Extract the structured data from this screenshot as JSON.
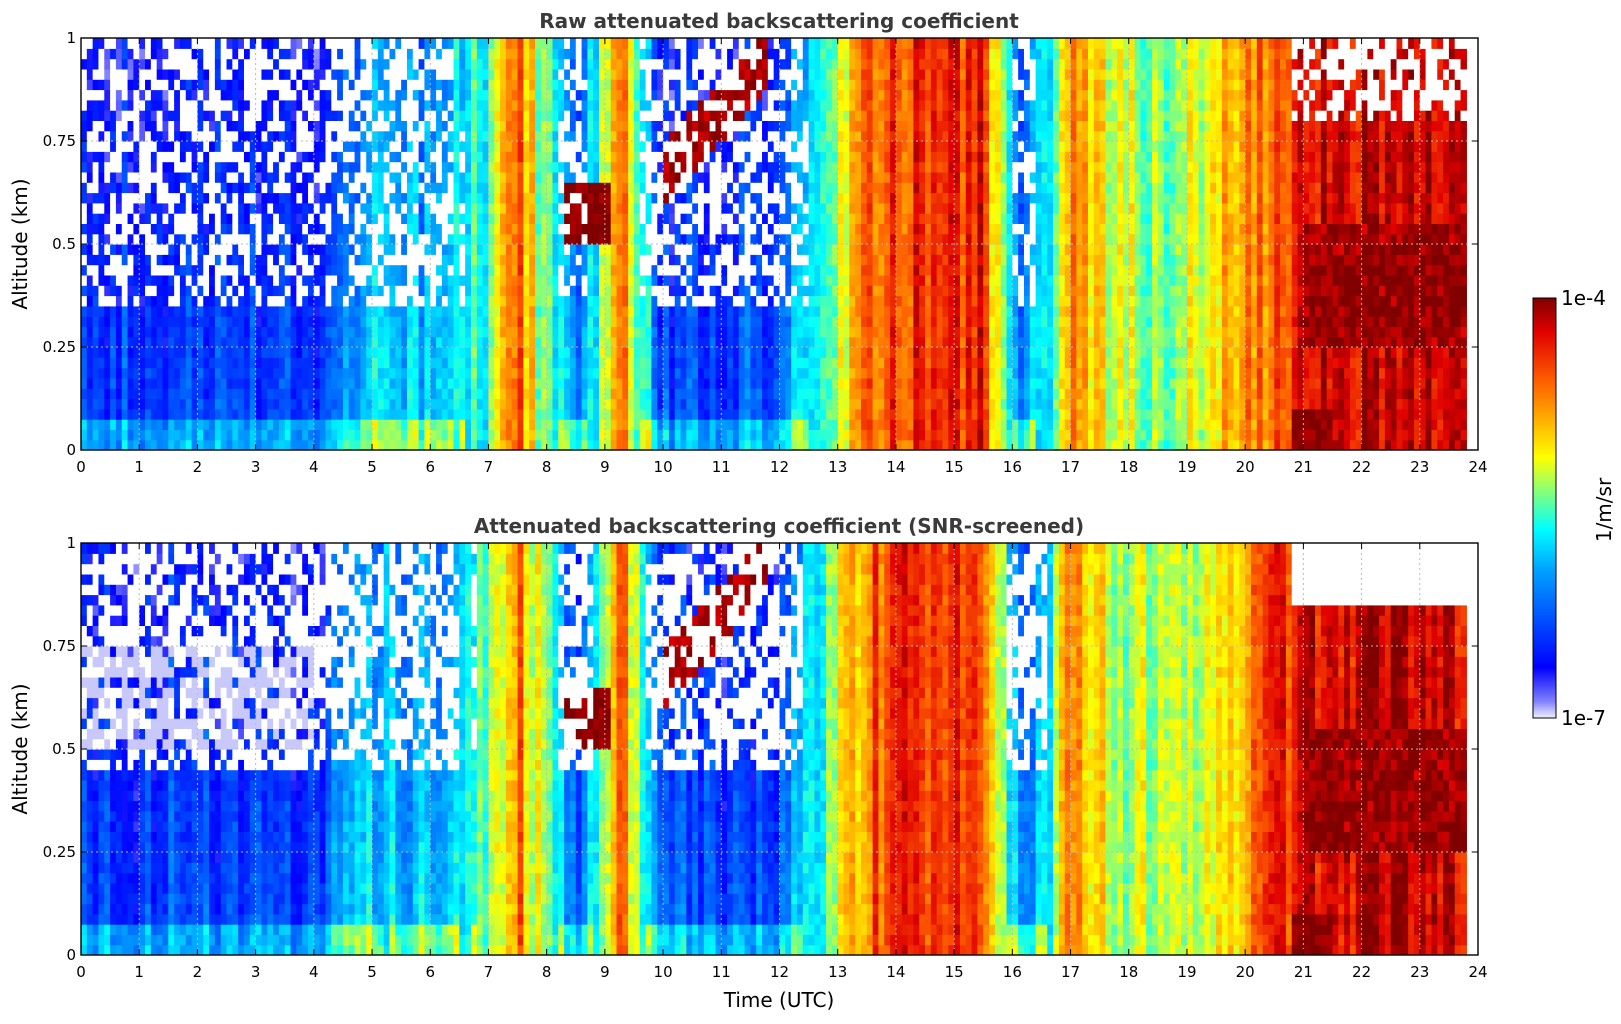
{
  "chart_data": [
    {
      "type": "heatmap",
      "title": "Raw attenuated backscattering coefficient",
      "xlabel": "",
      "ylabel": "Altitude (km)",
      "xlim": [
        0,
        24
      ],
      "ylim": [
        0,
        1
      ],
      "x_ticks": [
        "0",
        "1",
        "2",
        "3",
        "4",
        "5",
        "6",
        "7",
        "8",
        "9",
        "10",
        "11",
        "12",
        "13",
        "14",
        "15",
        "16",
        "17",
        "18",
        "19",
        "20",
        "21",
        "22",
        "23",
        "24"
      ],
      "y_ticks": [
        "0",
        "0.25",
        "0.5",
        "0.75",
        "1"
      ],
      "grid": true,
      "screened": false,
      "level_profile_by_hour_log10": [
        {
          "t": 0,
          "level": -6.6
        },
        {
          "t": 1,
          "level": -6.6
        },
        {
          "t": 2,
          "level": -6.6
        },
        {
          "t": 3,
          "level": -6.6
        },
        {
          "t": 4,
          "level": -6.6
        },
        {
          "t": 5,
          "level": -6.0
        },
        {
          "t": 6,
          "level": -6.1
        },
        {
          "t": 7,
          "level": -5.5
        },
        {
          "t": 7.5,
          "level": -4.6
        },
        {
          "t": 8.5,
          "level": -6.5
        },
        {
          "t": 9.3,
          "level": -4.6
        },
        {
          "t": 10,
          "level": -6.6
        },
        {
          "t": 12,
          "level": -6.5
        },
        {
          "t": 13.5,
          "level": -4.6
        },
        {
          "t": 14.5,
          "level": -4.4
        },
        {
          "t": 15.5,
          "level": -4.4
        },
        {
          "t": 16.2,
          "level": -6.5
        },
        {
          "t": 17,
          "level": -4.8
        },
        {
          "t": 18,
          "level": -5.3
        },
        {
          "t": 19,
          "level": -5.3
        },
        {
          "t": 20,
          "level": -4.8
        },
        {
          "t": 21,
          "level": -4.3
        },
        {
          "t": 22,
          "level": -4.2
        },
        {
          "t": 23,
          "level": -4.2
        },
        {
          "t": 23.8,
          "level": -4.3
        }
      ]
    },
    {
      "type": "heatmap",
      "title": "Attenuated backscattering coefficient (SNR-screened)",
      "xlabel": "Time (UTC)",
      "ylabel": "Altitude (km)",
      "xlim": [
        0,
        24
      ],
      "ylim": [
        0,
        1
      ],
      "x_ticks": [
        "0",
        "1",
        "2",
        "3",
        "4",
        "5",
        "6",
        "7",
        "8",
        "9",
        "10",
        "11",
        "12",
        "13",
        "14",
        "15",
        "16",
        "17",
        "18",
        "19",
        "20",
        "21",
        "22",
        "23",
        "24"
      ],
      "y_ticks": [
        "0",
        "0.25",
        "0.5",
        "0.75",
        "1"
      ],
      "grid": true,
      "screened": true
    }
  ],
  "colorbar": {
    "label": "1/m/sr",
    "max_label": "1e-4",
    "min_label": "1e-7",
    "colormap": "jet",
    "scale": "log",
    "range": [
      1e-07,
      0.0001
    ]
  }
}
